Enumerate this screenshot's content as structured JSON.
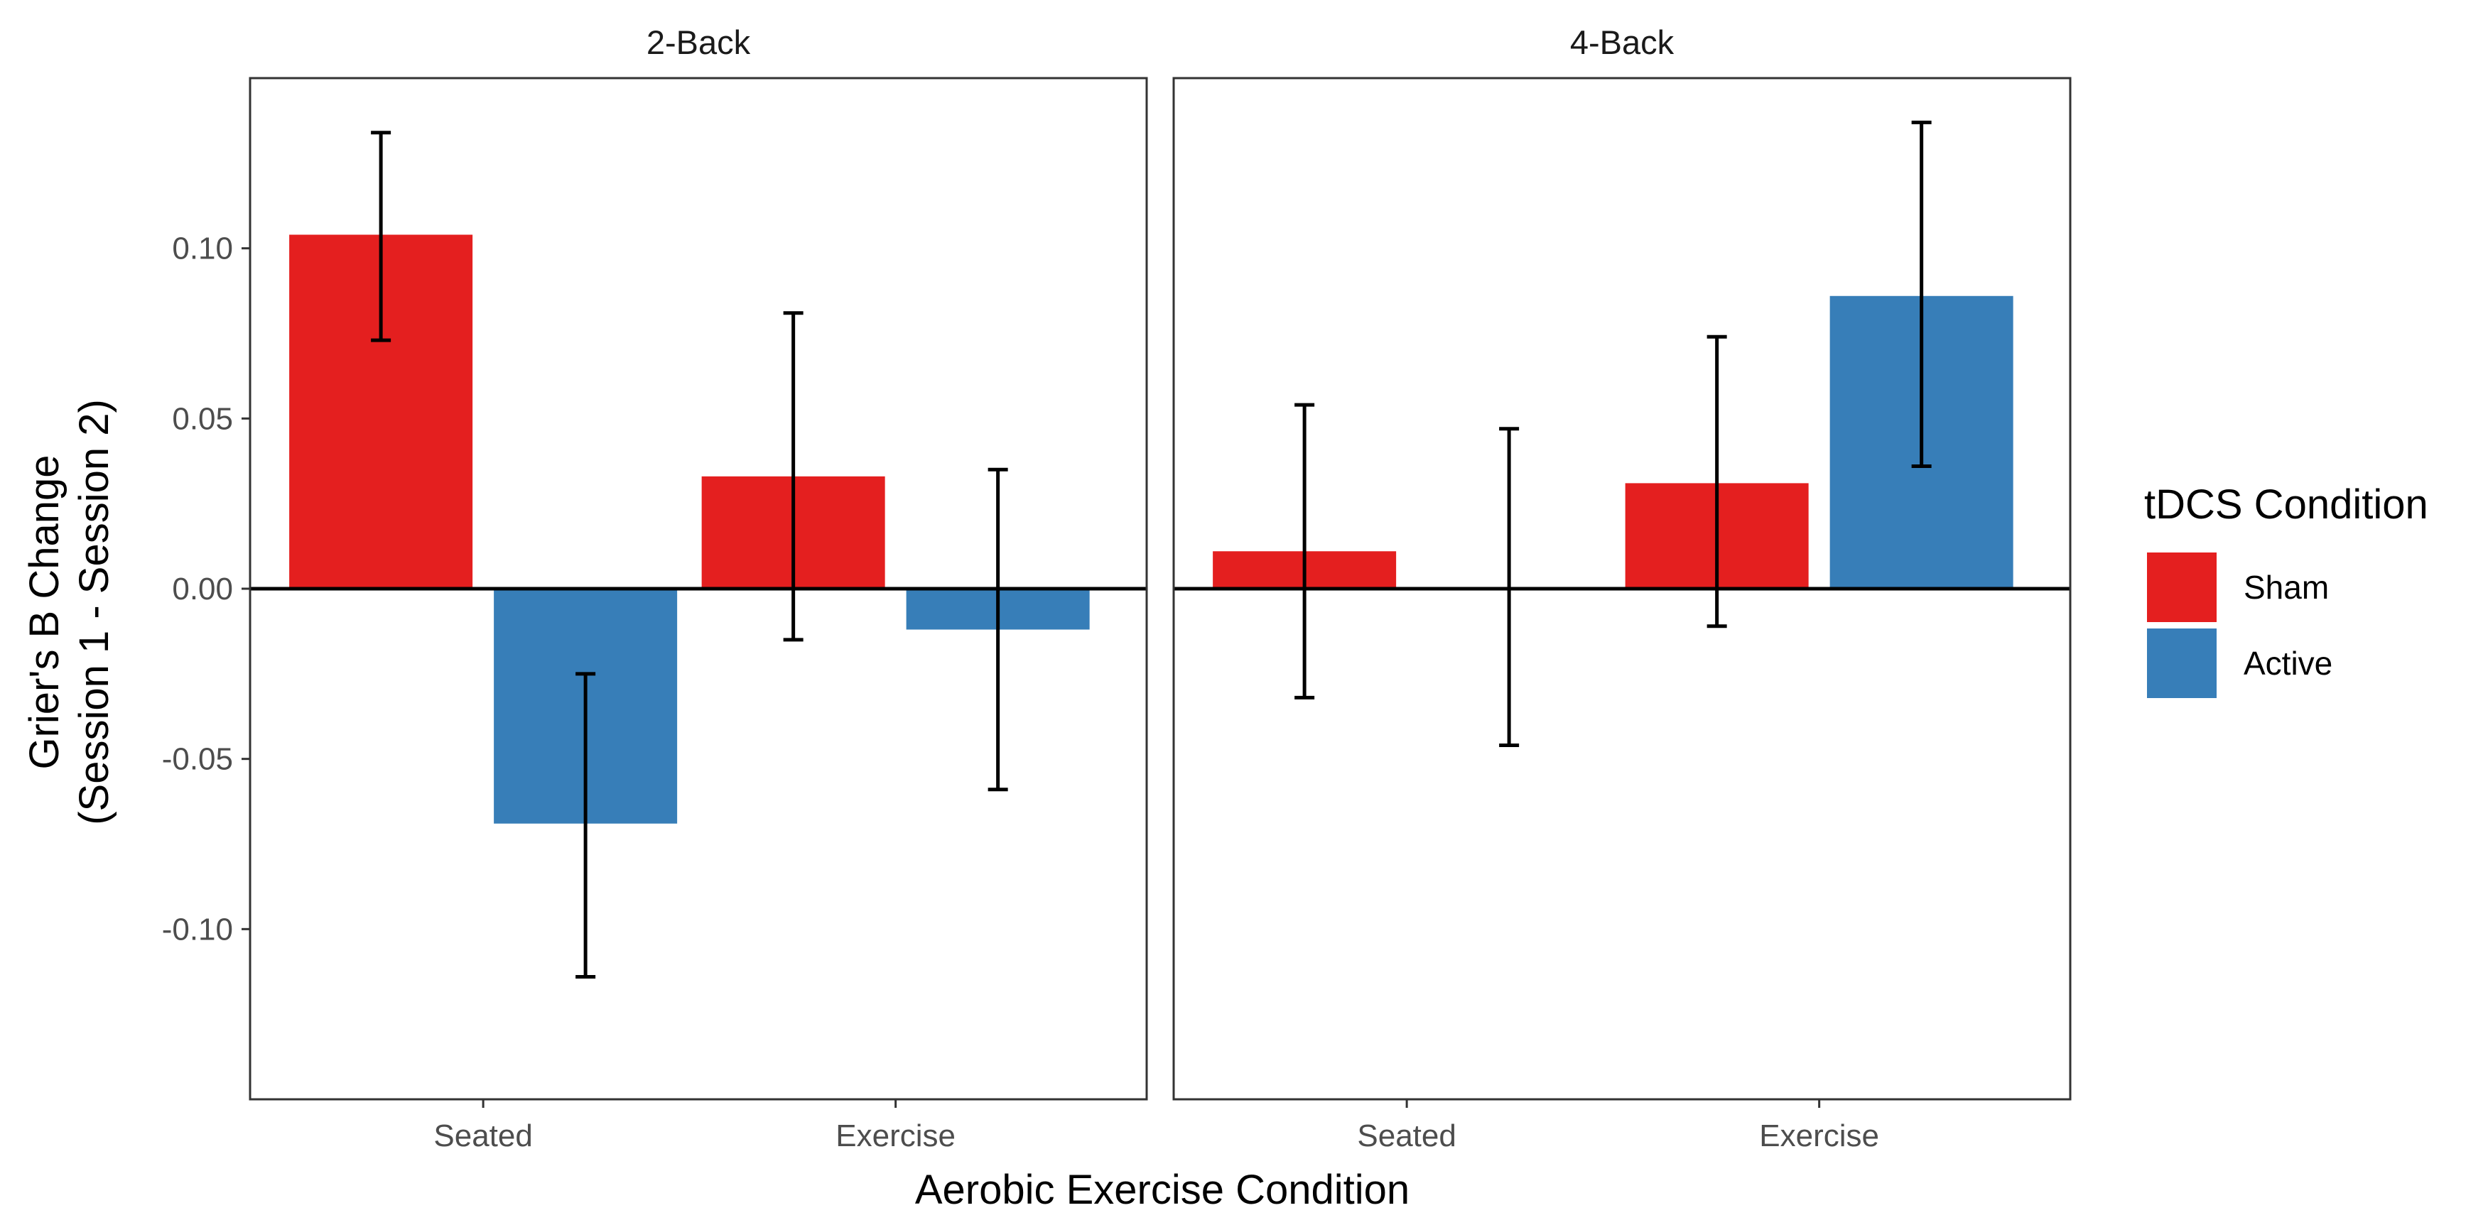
{
  "chart_data": {
    "type": "bar",
    "facet_by": "n-back task",
    "ylabel_lines": [
      "Grier's B Change",
      "(Session 1 - Session 2)"
    ],
    "xlabel": "Aerobic Exercise Condition",
    "ylim": [
      -0.15,
      0.15
    ],
    "yticks": [
      -0.1,
      -0.05,
      0.0,
      0.05,
      0.1
    ],
    "ytick_labels": [
      "-0.10",
      "-0.05",
      "0.00",
      "0.05",
      "0.10"
    ],
    "categories": [
      "Seated",
      "Exercise"
    ],
    "legend": {
      "title": "tDCS Condition",
      "position": "right",
      "entries": [
        {
          "name": "Sham",
          "color": "#E41F1F"
        },
        {
          "name": "Active",
          "color": "#377EB8"
        }
      ]
    },
    "reference_line": 0,
    "panels": [
      {
        "title": "2-Back",
        "series": [
          {
            "name": "Sham",
            "values": [
              0.104,
              0.033
            ],
            "err_low": [
              0.073,
              -0.015
            ],
            "err_high": [
              0.134,
              0.081
            ]
          },
          {
            "name": "Active",
            "values": [
              -0.069,
              -0.012
            ],
            "err_low": [
              -0.114,
              -0.059
            ],
            "err_high": [
              -0.025,
              0.035
            ]
          }
        ]
      },
      {
        "title": "4-Back",
        "series": [
          {
            "name": "Sham",
            "values": [
              0.011,
              0.031
            ],
            "err_low": [
              -0.032,
              -0.011
            ],
            "err_high": [
              0.054,
              0.074
            ]
          },
          {
            "name": "Active",
            "values": [
              0.0,
              0.086
            ],
            "err_low": [
              -0.046,
              0.036
            ],
            "err_high": [
              0.047,
              0.137
            ]
          }
        ]
      }
    ]
  }
}
